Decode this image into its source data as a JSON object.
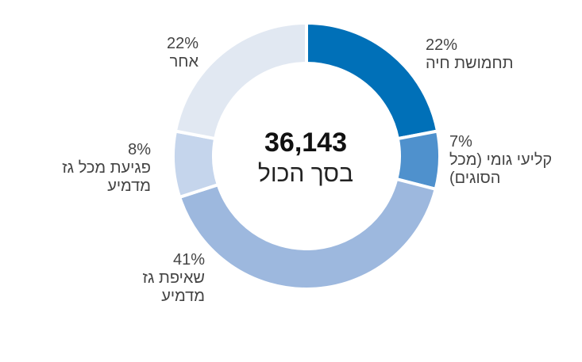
{
  "chart_data": {
    "type": "pie",
    "variant": "donut",
    "total_label": "36,143",
    "center_caption": "בסך הכול",
    "slices": [
      {
        "label": "תחמושת חיה",
        "percent_label": "22%",
        "value": 22,
        "color": "#0070b8"
      },
      {
        "label": "קליעי גומי (מכל הסוגים)",
        "percent_label": "7%",
        "value": 7,
        "color": "#4f91cd"
      },
      {
        "label": "שאיפת גז מדמיע",
        "percent_label": "41%",
        "value": 41,
        "color": "#9db8de"
      },
      {
        "label": "פגיעת מכל גז מדמיע",
        "percent_label": "8%",
        "value": 8,
        "color": "#c5d5ec"
      },
      {
        "label": "אחר",
        "percent_label": "22%",
        "value": 22,
        "color": "#e1e8f2"
      }
    ]
  }
}
